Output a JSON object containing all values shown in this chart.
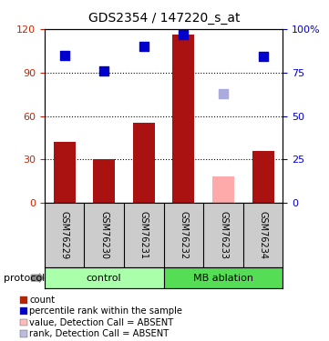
{
  "title": "GDS2354 / 147220_s_at",
  "samples": [
    "GSM76229",
    "GSM76230",
    "GSM76231",
    "GSM76232",
    "GSM76233",
    "GSM76234"
  ],
  "bar_values": [
    42,
    30,
    55,
    116,
    null,
    36
  ],
  "bar_absent_values": [
    null,
    null,
    null,
    null,
    18,
    null
  ],
  "rank_values": [
    85,
    76,
    90,
    97,
    null,
    84
  ],
  "rank_absent_values": [
    null,
    null,
    null,
    null,
    63,
    null
  ],
  "bar_color": "#aa1111",
  "bar_absent_color": "#ffaaaa",
  "rank_color": "#0000cc",
  "rank_absent_color": "#aaaadd",
  "ylim_left": [
    0,
    120
  ],
  "ylim_right": [
    0,
    100
  ],
  "left_ticks": [
    0,
    30,
    60,
    90,
    120
  ],
  "right_ticks": [
    0,
    25,
    50,
    75,
    100
  ],
  "right_tick_labels": [
    "0",
    "25",
    "50",
    "75",
    "100%"
  ],
  "left_tick_color": "#cc2200",
  "right_tick_color": "#0000cc",
  "groups": [
    {
      "label": "control",
      "start": 0,
      "end": 3,
      "color": "#aaffaa"
    },
    {
      "label": "MB ablation",
      "start": 3,
      "end": 6,
      "color": "#55dd55"
    }
  ],
  "protocol_label": "protocol",
  "legend_items": [
    {
      "label": "count",
      "color": "#bb2200"
    },
    {
      "label": "percentile rank within the sample",
      "color": "#0000cc"
    },
    {
      "label": "value, Detection Call = ABSENT",
      "color": "#ffbbbb"
    },
    {
      "label": "rank, Detection Call = ABSENT",
      "color": "#bbbbdd"
    }
  ],
  "background_color": "#ffffff",
  "sample_area_color": "#cccccc",
  "rank_marker_size": 55
}
